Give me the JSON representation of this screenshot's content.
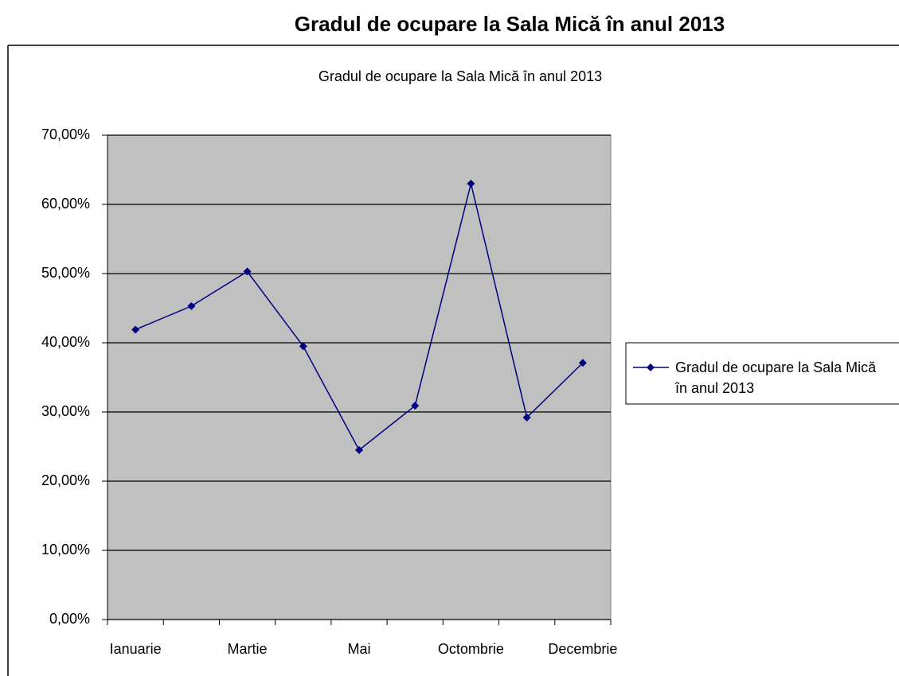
{
  "chart_data": {
    "type": "line",
    "title": "Gradul de ocupare la Sala Mică în anul 2013",
    "subtitle": "Gradul de ocupare la Sala Mică în anul 2013",
    "categories": [
      "Ianuarie",
      null,
      "Martie",
      null,
      "Mai",
      null,
      "Octombrie",
      null,
      "Decembrie"
    ],
    "series": [
      {
        "name": "Gradul de ocupare la Sala Mică în anul 2013",
        "color": "#000080",
        "values": [
          41.9,
          45.3,
          50.3,
          39.5,
          24.5,
          30.9,
          63.0,
          29.2,
          37.1
        ]
      }
    ],
    "ylim": [
      0,
      70
    ],
    "yticks": [
      {
        "value": 0,
        "label": "0,00%"
      },
      {
        "value": 10,
        "label": "10,00%"
      },
      {
        "value": 20,
        "label": "20,00%"
      },
      {
        "value": 30,
        "label": "30,00%"
      },
      {
        "value": 40,
        "label": "40,00%"
      },
      {
        "value": 50,
        "label": "50,00%"
      },
      {
        "value": 60,
        "label": "60,00%"
      },
      {
        "value": 70,
        "label": "70,00%"
      }
    ],
    "grid": true,
    "plot_background": "#c0c0c0",
    "legend": "right"
  }
}
